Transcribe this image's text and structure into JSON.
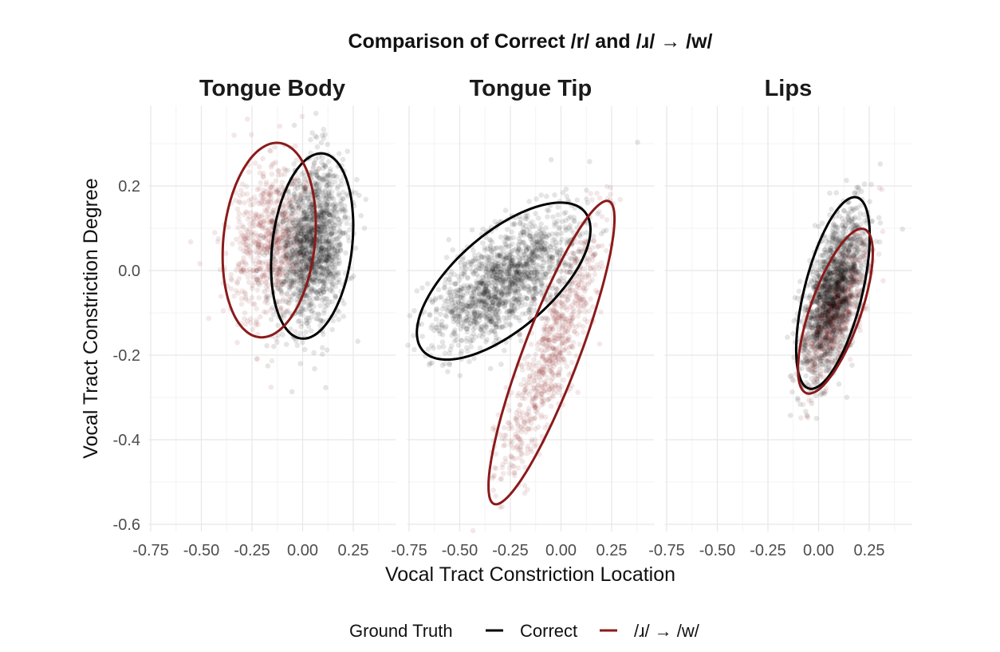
{
  "chart_data": {
    "type": "scatter",
    "title": "Comparison of Correct /r/ and /ɹ/ → /w/",
    "xlabel": "Vocal Tract Constriction Location",
    "ylabel": "Vocal Tract Constriction Degree",
    "xlim": [
      -0.76,
      0.46
    ],
    "ylim": [
      -0.617,
      0.389
    ],
    "x_ticks": [
      "-0.75",
      "-0.50",
      "-0.25",
      "0.00",
      "0.25"
    ],
    "x_tick_values": [
      -0.75,
      -0.5,
      -0.25,
      0,
      0.25
    ],
    "y_ticks": [
      "0.2",
      "0.0",
      "-0.2",
      "-0.4",
      "-0.6"
    ],
    "y_tick_values": [
      0.2,
      0,
      -0.2,
      -0.4,
      -0.6
    ],
    "grid": true,
    "legend": {
      "position": "bottom",
      "title": "Ground Truth",
      "entries": [
        {
          "label": "Correct",
          "color": "#000000"
        },
        {
          "label": "/ɹ/ → /w/",
          "color": "#8b1a1a"
        }
      ]
    },
    "point_opacity": 0.1,
    "panels": [
      {
        "title": "Tongue Body",
        "series": [
          {
            "group": "Correct",
            "color": "#000000",
            "n": 1500,
            "ellipse": {
              "center": [
                0.047,
                0.058
              ],
              "axis_a": [
                0.071,
                0.217
              ],
              "axis_b": [
                0.19,
                -0.03
              ]
            }
          },
          {
            "group": "/ɹ/ → /w/",
            "color": "#8b1a1a",
            "n": 700,
            "ellipse": {
              "center": [
                -0.165,
                0.072
              ],
              "axis_a": [
                0.067,
                0.228
              ],
              "axis_b": [
                0.22,
                -0.03
              ]
            }
          }
        ]
      },
      {
        "title": "Tongue Tip",
        "series": [
          {
            "group": "Correct",
            "color": "#000000",
            "n": 1500,
            "ellipse": {
              "center": [
                -0.283,
                -0.025
              ],
              "axis_a": [
                0.4,
                0.164
              ],
              "axis_b": [
                0.154,
                -0.087
              ]
            }
          },
          {
            "group": "/ɹ/ → /w/",
            "color": "#8b1a1a",
            "n": 700,
            "ellipse": {
              "center": [
                -0.047,
                -0.194
              ],
              "axis_a": [
                0.283,
                0.358
              ],
              "axis_b": [
                0.129,
                -0.023
              ]
            }
          }
        ]
      },
      {
        "title": "Lips",
        "series": [
          {
            "group": "Correct",
            "color": "#000000",
            "n": 1500,
            "ellipse": {
              "center": [
                0.071,
                -0.053
              ],
              "axis_a": [
                0.118,
                0.226
              ],
              "axis_b": [
                0.138,
                -0.017
              ]
            }
          },
          {
            "group": "/ɹ/ → /w/",
            "color": "#8b1a1a",
            "n": 700,
            "ellipse": {
              "center": [
                0.083,
                -0.096
              ],
              "axis_a": [
                0.142,
                0.194
              ],
              "axis_b": [
                0.118,
                -0.019
              ]
            }
          }
        ]
      }
    ]
  }
}
